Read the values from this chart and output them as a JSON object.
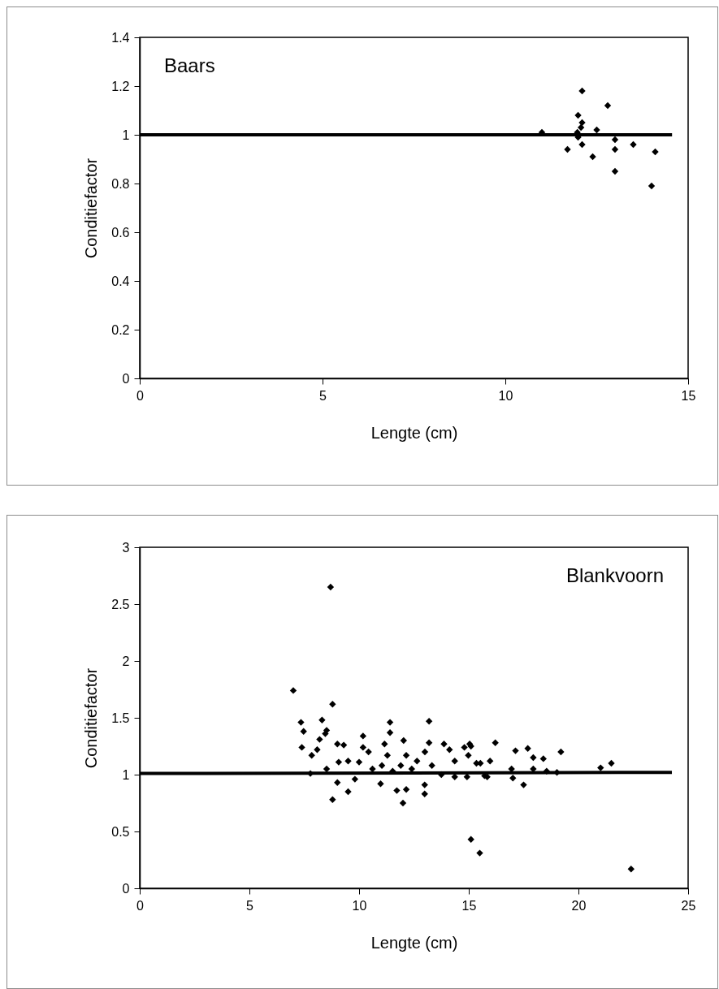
{
  "chart_data": [
    {
      "type": "scatter",
      "annotations": [
        "Baars"
      ],
      "xlabel": "Lengte (cm)",
      "ylabel": "Conditiefactor",
      "xlim": [
        0,
        15
      ],
      "ylim": [
        0,
        1.4
      ],
      "xticks": [
        0,
        5,
        10,
        15
      ],
      "yticks": [
        0,
        0.2,
        0.4,
        0.6,
        0.8,
        1,
        1.2,
        1.4
      ],
      "grid": false,
      "marker": "diamond",
      "series": [
        {
          "type": "line",
          "color": "#000000",
          "marker": "none",
          "x": [
            0,
            14.56
          ],
          "values": [
            1,
            1
          ]
        },
        {
          "type": "scatter",
          "color": "#000000",
          "x": [
            11.0,
            11.7,
            11.97,
            11.99,
            11.99,
            12.07,
            12.1,
            12.1,
            12.1,
            12.39,
            12.5,
            12.8,
            13.0,
            13.0,
            13.0,
            13.5,
            14.0,
            14.1
          ],
          "values": [
            1.01,
            0.94,
            1.01,
            1.08,
            0.99,
            1.03,
            1.05,
            1.18,
            0.96,
            0.91,
            1.02,
            1.12,
            0.98,
            0.94,
            0.85,
            0.96,
            0.79,
            0.93
          ]
        }
      ]
    },
    {
      "type": "scatter",
      "annotations": [
        "Blankvoorn"
      ],
      "xlabel": "Lengte (cm)",
      "ylabel": "Conditiefactor",
      "xlim": [
        0,
        25
      ],
      "ylim": [
        0,
        3
      ],
      "xticks": [
        0,
        5,
        10,
        15,
        20,
        25
      ],
      "yticks": [
        0,
        0.5,
        1,
        1.5,
        2,
        2.5,
        3
      ],
      "grid": false,
      "marker": "diamond",
      "series": [
        {
          "type": "line",
          "color": "#000000",
          "marker": "none",
          "x": [
            0,
            24.26
          ],
          "values": [
            1.01,
            1.02
          ]
        },
        {
          "type": "scatter",
          "color": "#000000",
          "x": [
            8.7,
            7.0,
            8.79,
            7.35,
            7.47,
            8.31,
            8.52,
            11.41,
            11.41,
            13.19,
            7.39,
            10.18,
            9.5,
            7.78,
            9.01,
            9.5,
            8.79,
            12.0,
            11.72,
            12.99,
            9.81,
            10.98,
            12.99,
            12.15,
            7.84,
            8.09,
            8.46,
            8.2,
            9.01,
            9.3,
            9.07,
            8.52,
            10.18,
            10.43,
            10.0,
            10.61,
            11.16,
            11.29,
            11.04,
            11.53,
            12.03,
            12.15,
            11.9,
            12.4,
            12.64,
            13.0,
            13.19,
            13.32,
            13.75,
            13.87,
            14.12,
            14.36,
            14.36,
            14.8,
            15.04,
            14.98,
            14.92,
            15.35,
            15.72,
            15.1,
            16.21,
            15.84,
            15.97,
            17.13,
            16.95,
            17.01,
            17.5,
            17.69,
            17.94,
            17.94,
            18.4,
            18.55,
            19.02,
            19.2,
            21.01,
            21.5,
            15.53,
            15.1,
            15.5,
            22.4
          ],
          "values": [
            2.65,
            1.74,
            1.62,
            1.46,
            1.38,
            1.48,
            1.39,
            1.46,
            1.37,
            1.47,
            1.24,
            1.34,
            1.12,
            1.01,
            0.93,
            0.85,
            0.78,
            0.75,
            0.86,
            0.83,
            0.96,
            0.92,
            0.91,
            0.87,
            1.17,
            1.22,
            1.36,
            1.31,
            1.27,
            1.26,
            1.11,
            1.05,
            1.24,
            1.2,
            1.11,
            1.05,
            1.27,
            1.17,
            1.08,
            1.03,
            1.3,
            1.17,
            1.08,
            1.05,
            1.12,
            1.2,
            1.28,
            1.08,
            1.0,
            1.27,
            1.22,
            1.12,
            0.98,
            1.24,
            1.27,
            1.17,
            0.98,
            1.1,
            0.99,
            1.25,
            1.28,
            0.98,
            1.12,
            1.21,
            1.05,
            0.97,
            0.91,
            1.23,
            1.15,
            1.05,
            1.14,
            1.03,
            1.02,
            1.2,
            1.06,
            1.1,
            1.1,
            0.43,
            0.31,
            0.17
          ]
        }
      ]
    }
  ]
}
